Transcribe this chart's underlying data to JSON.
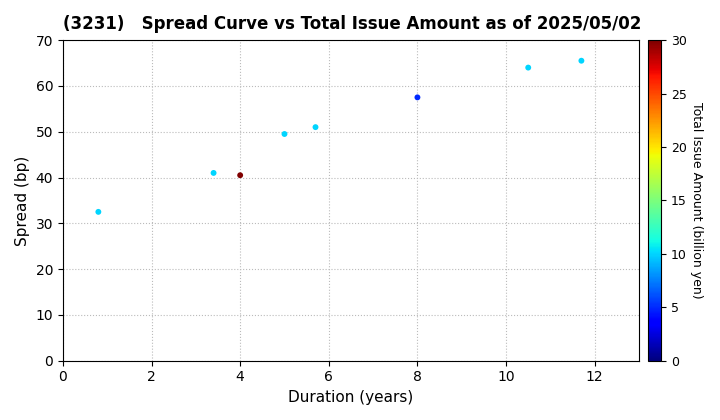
{
  "title": "(3231)   Spread Curve vs Total Issue Amount as of 2025/05/02",
  "xlabel": "Duration (years)",
  "ylabel": "Spread (bp)",
  "colorbar_label": "Total Issue Amount (billion yen)",
  "xlim": [
    0,
    13
  ],
  "ylim": [
    0,
    70
  ],
  "xticks": [
    0,
    2,
    4,
    6,
    8,
    10,
    12
  ],
  "yticks": [
    0,
    10,
    20,
    30,
    40,
    50,
    60,
    70
  ],
  "colorbar_range": [
    0,
    30
  ],
  "colorbar_ticks": [
    0,
    5,
    10,
    15,
    20,
    25,
    30
  ],
  "points": [
    {
      "duration": 0.8,
      "spread": 32.5,
      "amount": 10
    },
    {
      "duration": 3.4,
      "spread": 41.0,
      "amount": 10
    },
    {
      "duration": 4.0,
      "spread": 40.5,
      "amount": 30
    },
    {
      "duration": 5.0,
      "spread": 49.5,
      "amount": 10
    },
    {
      "duration": 5.7,
      "spread": 51.0,
      "amount": 10
    },
    {
      "duration": 8.0,
      "spread": 57.5,
      "amount": 5
    },
    {
      "duration": 10.5,
      "spread": 64.0,
      "amount": 10
    },
    {
      "duration": 11.7,
      "spread": 65.5,
      "amount": 10
    }
  ],
  "marker_size": 18,
  "background_color": "#ffffff",
  "grid_color": "#bbbbbb",
  "title_fontsize": 12,
  "axis_fontsize": 11,
  "tick_fontsize": 10,
  "cbar_tick_fontsize": 9,
  "cbar_label_fontsize": 9
}
